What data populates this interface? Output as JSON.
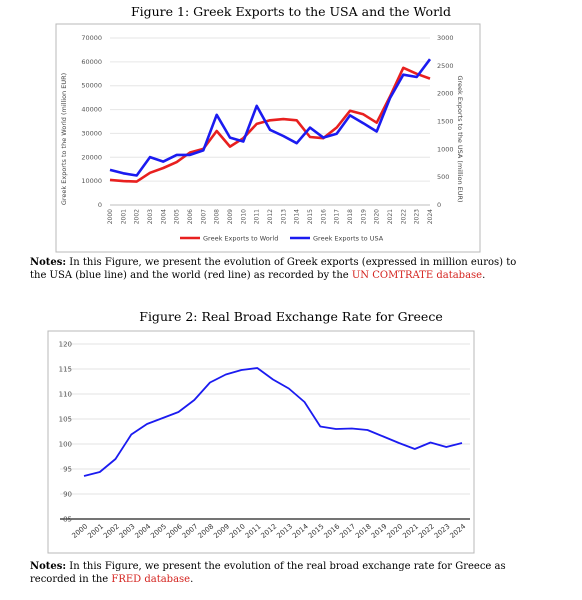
{
  "figure1": {
    "caption": "Figure 1: Greek Exports to the USA and the World",
    "notes_label": "Notes:",
    "notes_text": " In this Figure, we present the evolution of Greek exports (expressed in million euros) to the USA (blue line) and the world (red line) as recorded by the ",
    "notes_link": "UN COMTRATE database",
    "notes_end": "."
  },
  "figure2": {
    "caption": "Figure 2: Real Broad Exchange Rate for Greece",
    "notes_label": "Notes:",
    "notes_text": " In this Figure, we present the evolution of the real broad exchange rate for Greece as recorded in the ",
    "notes_link": "FRED database",
    "notes_end": "."
  },
  "chart_data": [
    {
      "type": "line",
      "title": "",
      "ylabel": "Greek Exports to the World (million EUR)",
      "y2label": "Greek Exports to the USA (million EUR)",
      "ylim": [
        0,
        70000
      ],
      "y2lim": [
        0,
        3000
      ],
      "yticks": [
        "0",
        "10000",
        "20000",
        "30000",
        "40000",
        "50000",
        "60000",
        "70000"
      ],
      "y2ticks": [
        "0",
        "500",
        "1000",
        "1500",
        "2000",
        "2500",
        "3000"
      ],
      "x": [
        "2000",
        "2001",
        "2002",
        "2003",
        "2004",
        "2005",
        "2006",
        "2007",
        "2008",
        "2009",
        "2010",
        "2011",
        "2012",
        "2013",
        "2014",
        "2015",
        "2016",
        "2017",
        "2018",
        "2019",
        "2020",
        "2021",
        "2022",
        "2023",
        "2024"
      ],
      "legend_position": "bottom",
      "series": [
        {
          "name": "Greek Exports to World",
          "axis": "left",
          "color": "#e8201f",
          "values": [
            10500,
            10000,
            9800,
            13500,
            15500,
            18000,
            22000,
            23500,
            31000,
            24500,
            28000,
            34000,
            35500,
            36000,
            35500,
            28500,
            28000,
            32500,
            39500,
            38000,
            34500,
            45500,
            57500,
            55000,
            53000
          ]
        },
        {
          "name": "Greek Exports to  USA",
          "axis": "right",
          "color": "#1b1bf0",
          "values": [
            630,
            570,
            530,
            860,
            780,
            900,
            900,
            980,
            1620,
            1210,
            1140,
            1780,
            1350,
            1240,
            1110,
            1390,
            1210,
            1280,
            1610,
            1470,
            1320,
            1920,
            2340,
            2300,
            2620
          ]
        }
      ]
    },
    {
      "type": "line",
      "title": "",
      "ylim": [
        85,
        120
      ],
      "yticks": [
        "85",
        "90",
        "95",
        "100",
        "105",
        "110",
        "115",
        "120"
      ],
      "x": [
        "2000",
        "2001",
        "2002",
        "2003",
        "2004",
        "2005",
        "2006",
        "2007",
        "2008",
        "2009",
        "2010",
        "2011",
        "2012",
        "2013",
        "2014",
        "2015",
        "2016",
        "2017",
        "2018",
        "2019",
        "2020",
        "2021",
        "2022",
        "2023",
        "2024"
      ],
      "series": [
        {
          "color": "#1b1bf0",
          "values": [
            93.6,
            94.4,
            97.0,
            101.9,
            104.0,
            105.2,
            106.4,
            108.8,
            112.3,
            113.9,
            114.8,
            115.2,
            112.9,
            111.1,
            108.4,
            103.5,
            103.0,
            103.1,
            102.8,
            101.5,
            100.2,
            99.0,
            100.3,
            99.4,
            100.2
          ]
        }
      ]
    }
  ]
}
